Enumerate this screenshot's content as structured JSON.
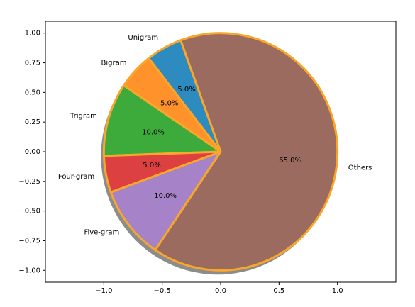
{
  "chart_data": {
    "type": "pie",
    "title": "",
    "categories": [
      "Unigram",
      "Bigram",
      "Trigram",
      "Four-gram",
      "Five-gram",
      "Others"
    ],
    "values": [
      5.0,
      5.0,
      10.0,
      5.0,
      10.0,
      65.0
    ],
    "value_labels": [
      "5.0%",
      "5.0%",
      "10.0%",
      "5.0%",
      "10.0%",
      "65.0%"
    ],
    "colors": [
      "#2e8bc0",
      "#ff922b",
      "#3cab3c",
      "#dd4040",
      "#a682c8",
      "#9a6b5e"
    ],
    "edge_color": "#f9a72b",
    "start_angle_deg": 110,
    "explode": [
      0,
      0,
      0,
      0,
      0,
      0
    ],
    "shadow": true,
    "x_ticks": [
      -1.0,
      -0.5,
      0.0,
      0.5,
      1.0
    ],
    "x_tick_labels": [
      "−1.0",
      "−0.5",
      "0.0",
      "0.5",
      "1.0"
    ],
    "y_ticks": [
      1.0,
      0.75,
      0.5,
      0.25,
      0.0,
      -0.25,
      -0.5,
      -0.75,
      -1.0
    ],
    "y_tick_labels": [
      "1.00",
      "0.75",
      "0.50",
      "0.25",
      "0.00",
      "−0.25",
      "−0.50",
      "−0.75",
      "−1.00"
    ],
    "xlim": [
      -1.5,
      1.5
    ],
    "ylim": [
      -1.1,
      1.1
    ],
    "grid": false,
    "legend": "none"
  }
}
